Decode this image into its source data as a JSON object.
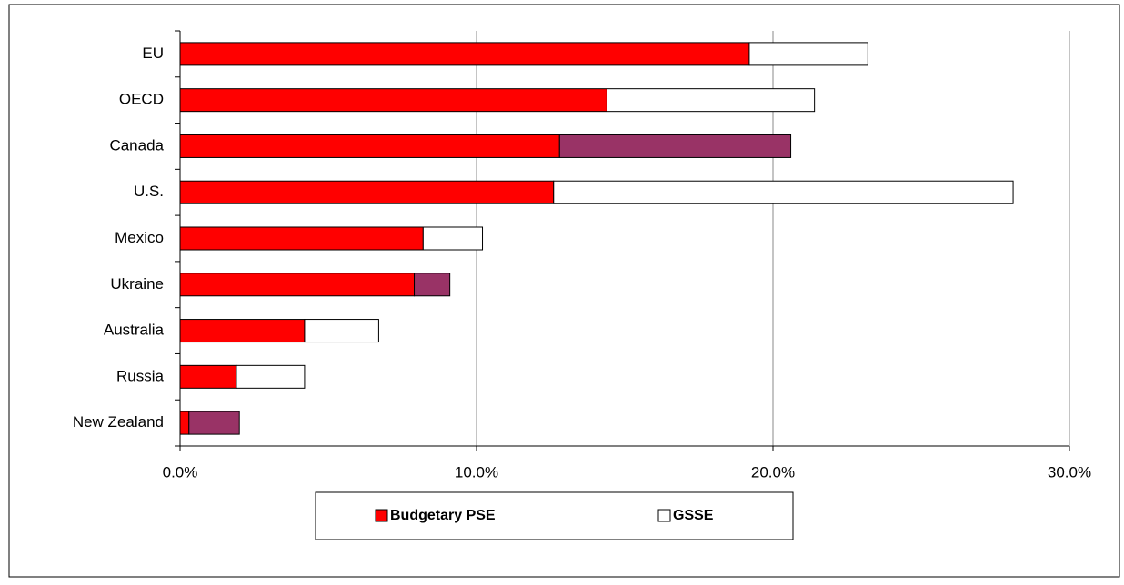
{
  "chart_data": {
    "type": "stacked_bar_horizontal",
    "categories": [
      "EU",
      "OECD",
      "Canada",
      "U.S.",
      "Mexico",
      "Ukraine",
      "Australia",
      "Russia",
      "New Zealand"
    ],
    "series": [
      {
        "name": "Budgetary PSE",
        "color": "#ff0000",
        "values": [
          19.2,
          14.4,
          12.8,
          12.6,
          8.2,
          7.9,
          4.2,
          1.9,
          0.3
        ]
      },
      {
        "name": "GSSE",
        "color": "#ffffff",
        "colors": [
          "#ffffff",
          "#ffffff",
          "#993366",
          "#ffffff",
          "#ffffff",
          "#993366",
          "#ffffff",
          "#ffffff",
          "#993366"
        ],
        "values": [
          4.0,
          7.0,
          7.8,
          15.5,
          2.0,
          1.2,
          2.5,
          2.3,
          1.7
        ]
      }
    ],
    "xlim": [
      0,
      30
    ],
    "xticks": [
      {
        "value": 0,
        "label": "0.0%"
      },
      {
        "value": 10,
        "label": "10.0%"
      },
      {
        "value": 20,
        "label": "20.0%"
      },
      {
        "value": 30,
        "label": "30.0%"
      }
    ],
    "grid": true,
    "legend": "bottom"
  }
}
